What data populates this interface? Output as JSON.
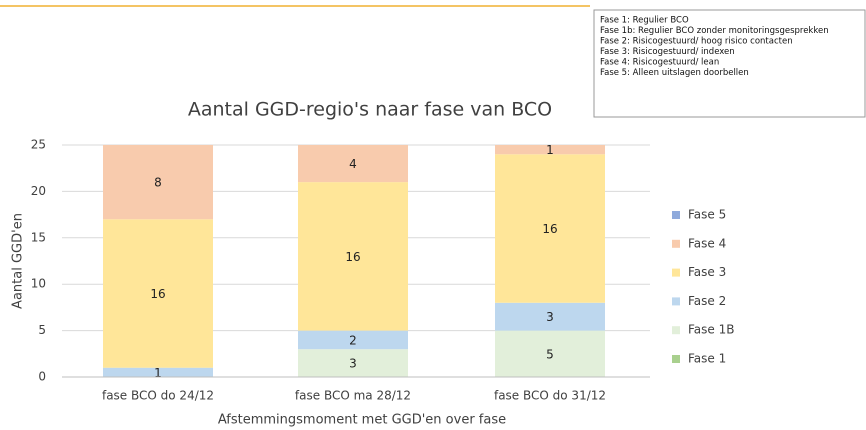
{
  "chart_data": {
    "type": "stacked_bar",
    "title": "Aantal GGD-regio's naar fase van BCO",
    "x_label": "Afstemmingsmoment met GGD'en over fase",
    "y_label": "Aantal GGD'en",
    "categories": [
      "fase BCO do 24/12",
      "fase BCO ma 28/12",
      "fase BCO do 31/12"
    ],
    "series": [
      {
        "name": "Fase 1",
        "color": "#a9d08e",
        "values": [
          0,
          0,
          0
        ]
      },
      {
        "name": "Fase 1B",
        "color": "#e2efda",
        "values": [
          0,
          3,
          5
        ]
      },
      {
        "name": "Fase 2",
        "color": "#bdd7ee",
        "values": [
          1,
          2,
          3
        ]
      },
      {
        "name": "Fase 3",
        "color": "#ffe699",
        "values": [
          16,
          16,
          16
        ]
      },
      {
        "name": "Fase 4",
        "color": "#f8cbad",
        "values": [
          8,
          4,
          1
        ]
      },
      {
        "name": "Fase 5",
        "color": "#8faadc",
        "values": [
          0,
          0,
          0
        ]
      }
    ],
    "ylim": [
      0,
      25
    ],
    "yticks": [
      0,
      5,
      10,
      15,
      20,
      25
    ],
    "grid": true,
    "notes": [
      "Fase 1: Regulier BCO",
      "Fase 1b: Regulier BCO zonder monitoringsgesprekken",
      "Fase 2: Risicogestuurd/ hoog risico contacten",
      "Fase 3: Risicogestuurd/ indexen",
      "Fase 4: Risicogestuurd/ lean",
      "Fase 5: Alleen uitslagen doorbellen"
    ]
  }
}
